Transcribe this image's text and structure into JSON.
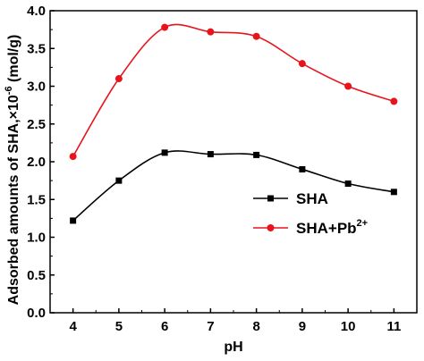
{
  "chart_data": {
    "type": "line",
    "title": "",
    "xlabel": "pH",
    "ylabel_main": "Adsorbed amounts of SHA,×10",
    "ylabel_exp": "-6",
    "ylabel_unit": " (mol/g)",
    "xlim": [
      3.5,
      11.5
    ],
    "ylim": [
      0.0,
      4.0
    ],
    "x_ticks": [
      "4",
      "5",
      "6",
      "7",
      "8",
      "9",
      "10",
      "11"
    ],
    "y_ticks": [
      "0.0",
      "0.5",
      "1.0",
      "1.5",
      "2.0",
      "2.5",
      "3.0",
      "3.5",
      "4.0"
    ],
    "x": [
      4,
      5,
      6,
      7,
      8,
      9,
      10,
      11
    ],
    "series": [
      {
        "name": "SHA",
        "name_sup": "",
        "color": "#000000",
        "marker": "square",
        "values": [
          1.22,
          1.75,
          2.12,
          2.1,
          2.09,
          1.9,
          1.71,
          1.6
        ]
      },
      {
        "name": "SHA+Pb",
        "name_sup": "2+",
        "color": "#e8141c",
        "marker": "circle",
        "values": [
          2.07,
          3.1,
          3.78,
          3.72,
          3.66,
          3.3,
          3.0,
          2.8
        ]
      }
    ],
    "grid": false,
    "legend_position": "center-right"
  }
}
